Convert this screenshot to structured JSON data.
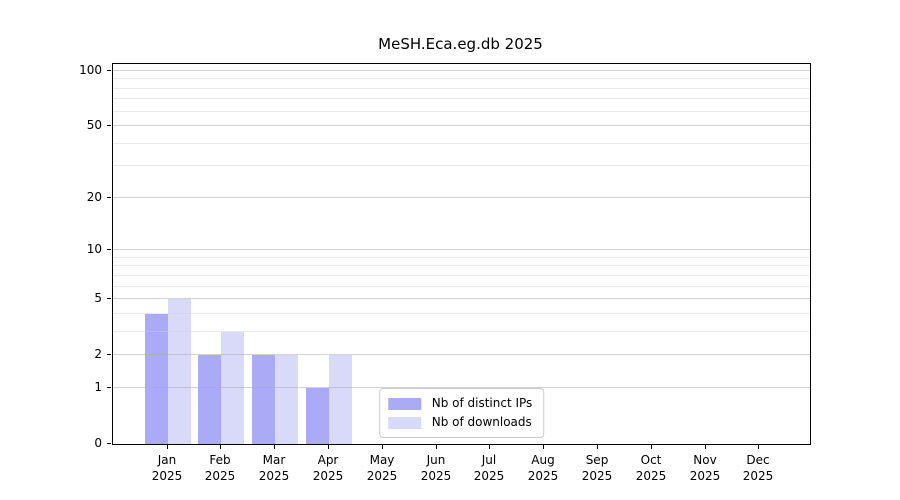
{
  "title": "MeSH.Eca.eg.db 2025",
  "chart_data": {
    "type": "bar",
    "title": "MeSH.Eca.eg.db 2025",
    "year_label": "2025",
    "categories": [
      "Jan",
      "Feb",
      "Mar",
      "Apr",
      "May",
      "Jun",
      "Jul",
      "Aug",
      "Sep",
      "Oct",
      "Nov",
      "Dec"
    ],
    "series": [
      {
        "name": "Nb of distinct IPs",
        "color": "#aaaaf7",
        "values": [
          4,
          2,
          2,
          1,
          0,
          0,
          0,
          0,
          0,
          0,
          0,
          0
        ]
      },
      {
        "name": "Nb of downloads",
        "color": "#d9d9fa",
        "values": [
          5,
          3,
          2,
          2,
          0,
          0,
          0,
          0,
          0,
          0,
          0,
          0
        ]
      }
    ],
    "y_axis": {
      "scale": "log1p",
      "tick_values": [
        0,
        1,
        2,
        5,
        10,
        20,
        50,
        100
      ],
      "tick_labels": [
        "0",
        "1",
        "2",
        "5",
        "10",
        "20",
        "50",
        "100"
      ],
      "minor_gridline_values": [
        3,
        4,
        6,
        7,
        8,
        9,
        30,
        40,
        60,
        70,
        80,
        90
      ],
      "range": [
        0,
        100
      ]
    },
    "x_axis": {
      "label_line2": "2025"
    },
    "legend": {
      "position": "inside-bottom-center",
      "entries": [
        "Nb of distinct IPs",
        "Nb of downloads"
      ]
    },
    "grid": "horizontal",
    "style_colors": {
      "axis": "#000000",
      "major_grid": "#cccccc",
      "minor_grid": "#ececec",
      "background": "#ffffff"
    }
  }
}
